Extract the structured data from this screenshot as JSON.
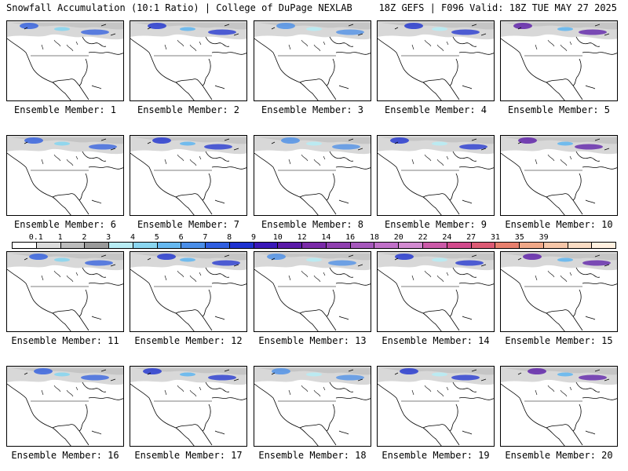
{
  "header": {
    "left": "Snowfall Accumulation (10:1 Ratio) | College of DuPage NEXLAB",
    "right": "18Z GEFS | F096 Valid: 18Z TUE MAY 27 2025"
  },
  "legend": {
    "labels": [
      "0.1",
      "1",
      "2",
      "3",
      "4",
      "5",
      "6",
      "7",
      "8",
      "9",
      "10",
      "12",
      "14",
      "16",
      "18",
      "20",
      "22",
      "24",
      "27",
      "31",
      "35",
      "39"
    ],
    "colors": [
      "#ffffff",
      "#dcdcdc",
      "#bcbcbc",
      "#9a9a9a",
      "#b8ecf4",
      "#8ad6f0",
      "#66b8f0",
      "#4a8ee8",
      "#2f5ee0",
      "#1e32d0",
      "#3a18b8",
      "#5a1aa8",
      "#7a2aa8",
      "#9040b0",
      "#a658bc",
      "#c070c8",
      "#d28ad0",
      "#cc5aa8",
      "#d24a8c",
      "#dc5a74",
      "#e8806e",
      "#f0a888",
      "#f6c6a8",
      "#fadcc4",
      "#fff0e0"
    ]
  },
  "members": [
    {
      "label": "Ensemble Member: 1"
    },
    {
      "label": "Ensemble Member: 2"
    },
    {
      "label": "Ensemble Member: 3"
    },
    {
      "label": "Ensemble Member: 4"
    },
    {
      "label": "Ensemble Member: 5"
    },
    {
      "label": "Ensemble Member: 6"
    },
    {
      "label": "Ensemble Member: 7"
    },
    {
      "label": "Ensemble Member: 8"
    },
    {
      "label": "Ensemble Member: 9"
    },
    {
      "label": "Ensemble Member: 10"
    },
    {
      "label": "Ensemble Member: 11"
    },
    {
      "label": "Ensemble Member: 12"
    },
    {
      "label": "Ensemble Member: 13"
    },
    {
      "label": "Ensemble Member: 14"
    },
    {
      "label": "Ensemble Member: 15"
    },
    {
      "label": "Ensemble Member: 16"
    },
    {
      "label": "Ensemble Member: 17"
    },
    {
      "label": "Ensemble Member: 18"
    },
    {
      "label": "Ensemble Member: 19"
    },
    {
      "label": "Ensemble Member: 20"
    }
  ]
}
